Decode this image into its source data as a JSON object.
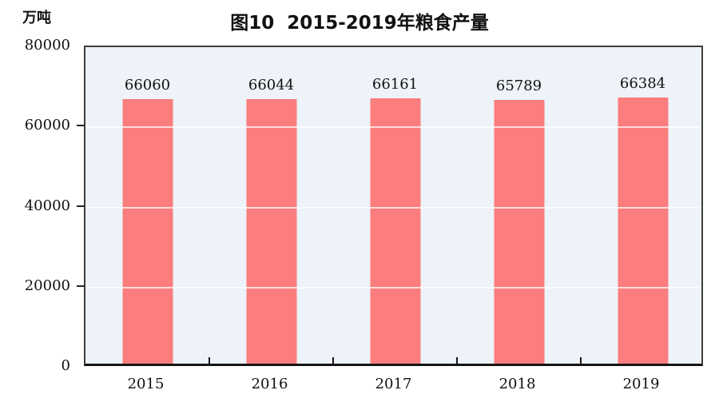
{
  "unit_label": "万吨",
  "title": "图10  2015-2019年粮食产量",
  "chart_data": {
    "type": "bar",
    "title": "图10  2015-2019年粮食产量",
    "categories": [
      "2015",
      "2016",
      "2017",
      "2018",
      "2019"
    ],
    "values": [
      66060,
      66044,
      66161,
      65789,
      66384
    ],
    "xlabel": "",
    "ylabel": "万吨",
    "ylim": [
      0,
      80000
    ],
    "yticks": [
      0,
      20000,
      40000,
      60000,
      80000
    ],
    "gridlines_at": [
      20000,
      40000,
      60000
    ],
    "grid": true,
    "legend": "none",
    "data_labels": true,
    "colors": {
      "bar": "#fb7d7d",
      "plot_background": "#edf3f8",
      "gridline": "#ffffff",
      "border": "#3d3d3d",
      "text": "#111111"
    }
  }
}
